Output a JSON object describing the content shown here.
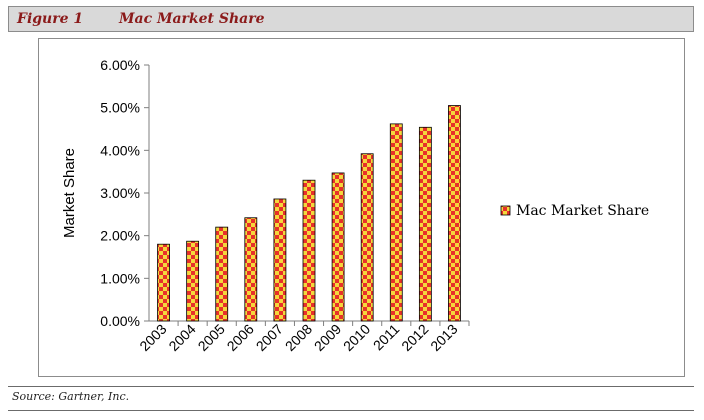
{
  "figure": {
    "label": "Figure 1",
    "title": "Mac Market Share"
  },
  "source": "Source: Gartner, Inc.",
  "colors": {
    "bar_fill_a": "#e8302a",
    "bar_fill_b": "#f4d83c",
    "header_text": "#8b1a1a",
    "header_bg": "#d9d9d9"
  },
  "chart_data": {
    "type": "bar",
    "categories": [
      "2003",
      "2004",
      "2005",
      "2006",
      "2007",
      "2008",
      "2009",
      "2010",
      "2011",
      "2012",
      "2013"
    ],
    "series": [
      {
        "name": "Mac Market Share",
        "values": [
          1.8,
          1.87,
          2.2,
          2.42,
          2.86,
          3.3,
          3.47,
          3.92,
          4.62,
          4.54,
          5.05
        ]
      }
    ],
    "ylabel": "Market Share",
    "ylim": [
      0,
      6
    ],
    "yticks": [
      "0.00%",
      "1.00%",
      "2.00%",
      "3.00%",
      "4.00%",
      "5.00%",
      "6.00%"
    ],
    "y_unit": "percent",
    "grid": false,
    "legend": "right",
    "pattern": "checkerboard"
  }
}
